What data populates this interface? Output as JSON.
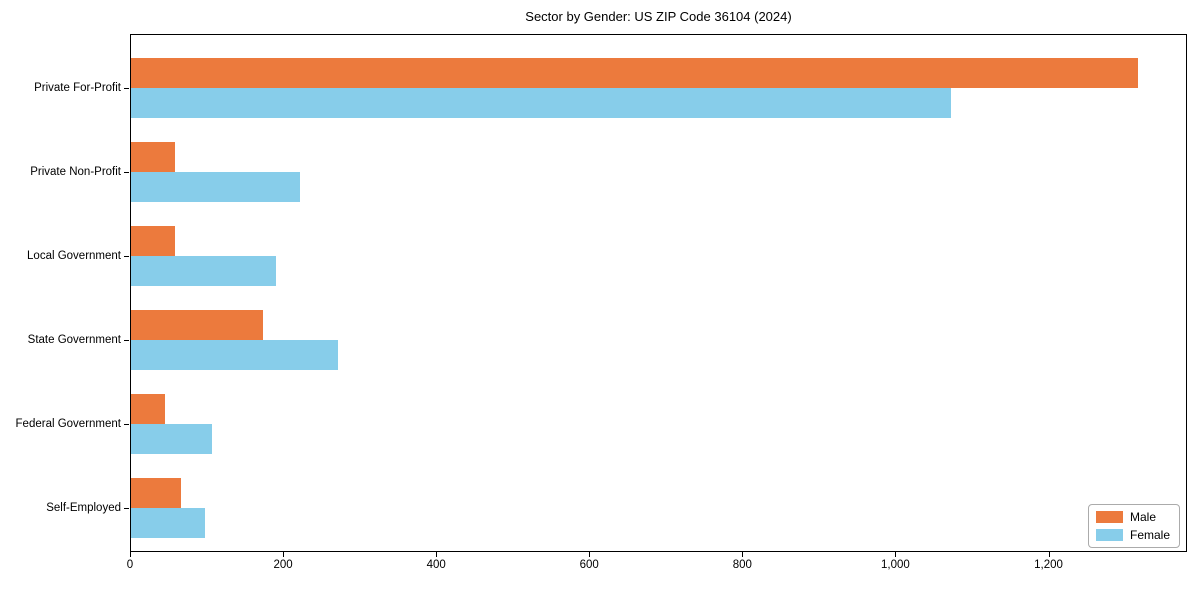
{
  "title": "Sector by Gender: US ZIP Code 36104 (2024)",
  "chart_data": {
    "type": "bar",
    "orientation": "horizontal",
    "title": "Sector by Gender: US ZIP Code 36104 (2024)",
    "categories": [
      "Private For-Profit",
      "Private Non-Profit",
      "Local Government",
      "State Government",
      "Federal Government",
      "Self-Employed"
    ],
    "series": [
      {
        "name": "Male",
        "color": "#ec7a3d",
        "values": [
          1315,
          57,
          57,
          172,
          45,
          65
        ]
      },
      {
        "name": "Female",
        "color": "#87cdea",
        "values": [
          1071,
          221,
          190,
          270,
          106,
          96
        ]
      }
    ],
    "xlabel": "",
    "ylabel": "",
    "xlim": [
      0,
      1381
    ],
    "xticks": [
      0,
      200,
      400,
      600,
      800,
      1000,
      1200
    ],
    "xtick_labels": [
      "0",
      "200",
      "400",
      "600",
      "800",
      "1,000",
      "1,200"
    ],
    "grid": false,
    "legend_position": "lower right",
    "bar_order_note": "Male bar drawn above Female bar within each category group"
  }
}
